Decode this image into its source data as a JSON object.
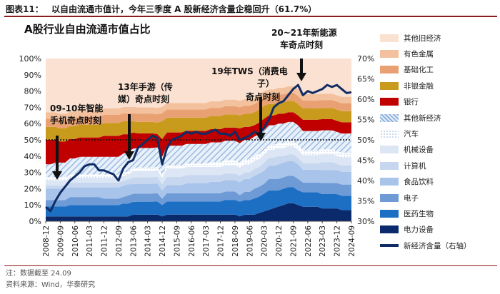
{
  "figure_label": "图表11：",
  "figure_title": "以自由流通市值计，今年三季度 A 股新经济含量企稳回升（61.7%）",
  "notes": [
    "注：数据截至 24.09",
    "资料来源：Wind，华泰研究"
  ],
  "chart_data": {
    "type": "area",
    "title": "A股行业自由流通市值占比",
    "xlabel": "",
    "ylabel_left": "",
    "ylabel_right": "新经济含量（右轴）",
    "ylim_left": [
      0,
      100
    ],
    "ylim_right": [
      30,
      70
    ],
    "left_ticks": [
      "0%",
      "10%",
      "20%",
      "30%",
      "40%",
      "50%",
      "60%",
      "70%",
      "80%",
      "90%",
      "100%"
    ],
    "right_ticks": [
      "30%",
      "35%",
      "40%",
      "45%",
      "50%",
      "55%",
      "60%",
      "65%",
      "70%"
    ],
    "x": [
      "2008-12",
      "2009-03",
      "2009-06",
      "2009-09",
      "2009-12",
      "2010-03",
      "2010-06",
      "2010-09",
      "2010-12",
      "2011-03",
      "2011-06",
      "2011-09",
      "2011-12",
      "2012-03",
      "2012-06",
      "2012-09",
      "2012-12",
      "2013-03",
      "2013-06",
      "2013-09",
      "2013-12",
      "2014-03",
      "2014-06",
      "2014-09",
      "2014-12",
      "2015-03",
      "2015-06",
      "2015-09",
      "2015-12",
      "2016-03",
      "2016-06",
      "2016-09",
      "2016-12",
      "2017-03",
      "2017-06",
      "2017-09",
      "2017-12",
      "2018-03",
      "2018-06",
      "2018-09",
      "2018-12",
      "2019-03",
      "2019-06",
      "2019-09",
      "2019-12",
      "2020-03",
      "2020-06",
      "2020-09",
      "2020-12",
      "2021-03",
      "2021-06",
      "2021-09",
      "2021-12",
      "2022-03",
      "2022-06",
      "2022-09",
      "2022-12",
      "2023-03",
      "2023-06",
      "2023-09",
      "2023-12",
      "2024-03",
      "2024-06",
      "2024-09"
    ],
    "x_tick_labels": [
      "2008-12",
      "2009-09",
      "2010-06",
      "2011-03",
      "2011-12",
      "2012-09",
      "2013-06",
      "2014-03",
      "2014-12",
      "2015-09",
      "2016-06",
      "2017-03",
      "2017-12",
      "2018-09",
      "2019-06",
      "2020-03",
      "2020-12",
      "2021-09",
      "2022-06",
      "2023-03",
      "2023-12",
      "2024-09"
    ],
    "dashed_reference_line": 50,
    "series": [
      {
        "name": "电力设备",
        "group": "新经济",
        "color": "#0a2a6b",
        "values": [
          3,
          3,
          3,
          3,
          3,
          3,
          3,
          3,
          3,
          3,
          3,
          3,
          3,
          3,
          3,
          3,
          3,
          3,
          4,
          4,
          4,
          4,
          4,
          4,
          3,
          4,
          4,
          4,
          4,
          4,
          4,
          4,
          4,
          4,
          4,
          4,
          4,
          4,
          4,
          4,
          3,
          4,
          4,
          4,
          5,
          6,
          7,
          8,
          9,
          10,
          11,
          11,
          10,
          9,
          9,
          9,
          9,
          8,
          8,
          8,
          8,
          7,
          7,
          7
        ]
      },
      {
        "name": "医药生物",
        "group": "新经济",
        "color": "#1d6fc4",
        "values": [
          6,
          6,
          6,
          6,
          6,
          7,
          7,
          7,
          7,
          7,
          7,
          7,
          7,
          7,
          7,
          7,
          8,
          8,
          8,
          8,
          8,
          8,
          8,
          8,
          7,
          8,
          8,
          8,
          8,
          8,
          8,
          8,
          8,
          8,
          8,
          8,
          8,
          9,
          9,
          9,
          9,
          9,
          9,
          10,
          10,
          11,
          12,
          11,
          10,
          10,
          10,
          10,
          9,
          9,
          9,
          9,
          9,
          9,
          9,
          9,
          9,
          9,
          9,
          9
        ]
      },
      {
        "name": "电子",
        "group": "新经济",
        "color": "#6e9bd6",
        "values": [
          4,
          4,
          4,
          4,
          4,
          5,
          5,
          5,
          5,
          5,
          5,
          5,
          4,
          4,
          4,
          4,
          4,
          5,
          5,
          5,
          5,
          5,
          5,
          5,
          4,
          5,
          5,
          5,
          5,
          5,
          5,
          5,
          5,
          5,
          5,
          5,
          5,
          5,
          5,
          5,
          4,
          5,
          5,
          6,
          6,
          6,
          7,
          7,
          7,
          7,
          7,
          7,
          7,
          6,
          6,
          6,
          6,
          7,
          7,
          7,
          7,
          7,
          7,
          7
        ]
      },
      {
        "name": "食品饮料",
        "group": "新经济",
        "color": "#a9c4ea",
        "values": [
          7,
          7,
          7,
          7,
          7,
          6,
          6,
          6,
          6,
          6,
          6,
          6,
          7,
          7,
          7,
          7,
          7,
          7,
          6,
          6,
          6,
          6,
          6,
          6,
          5,
          5,
          5,
          5,
          5,
          6,
          6,
          6,
          6,
          6,
          7,
          7,
          7,
          7,
          7,
          7,
          8,
          8,
          8,
          8,
          8,
          8,
          8,
          8,
          9,
          9,
          9,
          9,
          9,
          8,
          8,
          8,
          8,
          8,
          8,
          8,
          8,
          8,
          8,
          8
        ]
      },
      {
        "name": "计算机",
        "group": "新经济",
        "color": "#c6d7ef",
        "values": [
          2,
          2,
          2,
          2,
          2,
          3,
          3,
          3,
          3,
          3,
          3,
          3,
          3,
          3,
          3,
          3,
          3,
          3,
          4,
          4,
          4,
          4,
          4,
          4,
          4,
          5,
          5,
          5,
          5,
          5,
          5,
          5,
          5,
          5,
          4,
          4,
          4,
          4,
          4,
          4,
          4,
          4,
          4,
          4,
          4,
          5,
          5,
          5,
          5,
          4,
          4,
          4,
          4,
          4,
          4,
          4,
          4,
          5,
          5,
          5,
          4,
          4,
          4,
          4
        ]
      },
      {
        "name": "机械设备",
        "group": "新经济",
        "color": "#dce6f4",
        "values": [
          3,
          3,
          3,
          3,
          3,
          3,
          3,
          3,
          3,
          3,
          3,
          3,
          3,
          3,
          3,
          3,
          3,
          3,
          4,
          4,
          4,
          4,
          4,
          4,
          4,
          5,
          5,
          5,
          5,
          5,
          5,
          5,
          5,
          5,
          5,
          5,
          5,
          5,
          5,
          5,
          5,
          5,
          5,
          5,
          5,
          5,
          5,
          5,
          5,
          5,
          5,
          5,
          5,
          5,
          5,
          5,
          5,
          5,
          5,
          5,
          5,
          5,
          5,
          5
        ]
      },
      {
        "name": "汽车",
        "group": "新经济",
        "color": "#eaf1fb",
        "values": [
          2,
          2,
          2,
          2,
          2,
          2,
          2,
          2,
          2,
          2,
          2,
          2,
          2,
          2,
          2,
          2,
          2,
          2,
          2,
          2,
          2,
          2,
          2,
          2,
          2,
          2,
          2,
          2,
          2,
          2,
          2,
          2,
          2,
          2,
          3,
          3,
          3,
          3,
          3,
          3,
          3,
          3,
          3,
          3,
          3,
          3,
          3,
          3,
          3,
          3,
          3,
          3,
          3,
          3,
          3,
          3,
          3,
          3,
          3,
          3,
          3,
          3,
          3,
          3
        ]
      },
      {
        "name": "其他新经济",
        "group": "新经济",
        "color": "#9ab9e0",
        "values": [
          8,
          8,
          9,
          9,
          9,
          10,
          10,
          11,
          11,
          11,
          11,
          11,
          11,
          11,
          11,
          11,
          12,
          12,
          12,
          12,
          12,
          12,
          12,
          12,
          11,
          12,
          12,
          12,
          12,
          12,
          12,
          12,
          12,
          12,
          12,
          12,
          12,
          12,
          12,
          12,
          12,
          12,
          12,
          12,
          12,
          12,
          12,
          12,
          12,
          12,
          12,
          12,
          12,
          12,
          12,
          12,
          12,
          12,
          12,
          12,
          12,
          12,
          12,
          12
        ]
      },
      {
        "name": "银行",
        "group": "旧经济",
        "color": "#c00000",
        "values": [
          15,
          15,
          14,
          13,
          13,
          12,
          12,
          12,
          12,
          12,
          12,
          12,
          13,
          13,
          13,
          13,
          12,
          11,
          10,
          9,
          9,
          9,
          9,
          8,
          11,
          8,
          8,
          8,
          8,
          8,
          8,
          8,
          8,
          8,
          8,
          8,
          8,
          8,
          8,
          8,
          9,
          8,
          8,
          7,
          7,
          7,
          6,
          6,
          6,
          6,
          6,
          6,
          6,
          7,
          7,
          7,
          7,
          7,
          7,
          7,
          7,
          7,
          7,
          7
        ]
      },
      {
        "name": "非银金融",
        "group": "旧经济",
        "color": "#c89b1c",
        "values": [
          8,
          8,
          8,
          8,
          8,
          8,
          8,
          8,
          8,
          8,
          8,
          8,
          8,
          8,
          8,
          8,
          8,
          8,
          7,
          7,
          7,
          7,
          7,
          7,
          11,
          9,
          9,
          9,
          9,
          8,
          8,
          8,
          8,
          8,
          8,
          8,
          8,
          8,
          8,
          8,
          8,
          8,
          8,
          8,
          8,
          8,
          7,
          7,
          7,
          7,
          7,
          7,
          7,
          7,
          7,
          7,
          7,
          7,
          7,
          7,
          7,
          7,
          7,
          7
        ]
      },
      {
        "name": "基础化工",
        "group": "旧经济",
        "color": "#e9a173",
        "values": [
          5,
          5,
          5,
          5,
          5,
          5,
          5,
          5,
          5,
          5,
          5,
          5,
          5,
          5,
          5,
          5,
          5,
          5,
          5,
          5,
          5,
          5,
          5,
          5,
          5,
          5,
          5,
          5,
          5,
          5,
          5,
          5,
          5,
          5,
          5,
          5,
          5,
          5,
          5,
          5,
          5,
          5,
          5,
          5,
          5,
          5,
          5,
          5,
          5,
          5,
          5,
          5,
          5,
          5,
          5,
          5,
          5,
          5,
          5,
          5,
          5,
          5,
          5,
          5
        ]
      },
      {
        "name": "有色金属",
        "group": "旧经济",
        "color": "#f3c19d",
        "values": [
          4,
          4,
          4,
          4,
          4,
          4,
          4,
          4,
          4,
          4,
          4,
          4,
          4,
          4,
          4,
          4,
          4,
          4,
          4,
          4,
          4,
          4,
          4,
          4,
          4,
          4,
          4,
          4,
          4,
          4,
          4,
          4,
          4,
          4,
          4,
          4,
          4,
          4,
          4,
          4,
          4,
          4,
          4,
          4,
          4,
          4,
          4,
          4,
          4,
          4,
          4,
          4,
          4,
          4,
          4,
          4,
          4,
          4,
          4,
          4,
          4,
          4,
          4,
          4
        ]
      },
      {
        "name": "其他旧经济",
        "group": "旧经济",
        "color": "#fbe1d1",
        "values": [
          33,
          33,
          33,
          34,
          34,
          33,
          33,
          32,
          32,
          32,
          32,
          32,
          31,
          31,
          31,
          31,
          30,
          30,
          30,
          30,
          30,
          30,
          30,
          30,
          30,
          27,
          27,
          27,
          27,
          27,
          27,
          27,
          27,
          27,
          26,
          26,
          26,
          25,
          25,
          25,
          26,
          25,
          25,
          24,
          22,
          20,
          19,
          19,
          18,
          18,
          17,
          17,
          19,
          22,
          22,
          22,
          22,
          22,
          22,
          22,
          23,
          24,
          24,
          24
        ]
      },
      {
        "name": "新经济含量（右轴）",
        "axis": "right",
        "type": "line",
        "color": "#0f2c63",
        "values": [
          33.5,
          32.5,
          35,
          37,
          38.5,
          40,
          41,
          42,
          43.5,
          44,
          44,
          42.5,
          42.5,
          42,
          41.5,
          40,
          43,
          44.5,
          45,
          48,
          49,
          50,
          51,
          50.5,
          44,
          48,
          50,
          50.5,
          51,
          52,
          51.5,
          52,
          51.5,
          51.5,
          52,
          52.5,
          51.5,
          51.5,
          51,
          52,
          50,
          50.5,
          51,
          52,
          51.5,
          53,
          55,
          58,
          59,
          59.5,
          61,
          62.5,
          63.5,
          61,
          62,
          61.5,
          62,
          62.5,
          63.5,
          63,
          63.5,
          62.5,
          61.5,
          61.7
        ]
      }
    ],
    "annotations": [
      {
        "text_lines": [
          "09-10年智能",
          "手机奇点时刻"
        ],
        "x": "2009-06"
      },
      {
        "text_lines": [
          "13年手游（传",
          "媒）奇点时刻"
        ],
        "x": "2013-06"
      },
      {
        "text_lines": [
          "19年TWS（消费电",
          "子）",
          "奇点时刻"
        ],
        "x": "2019-12"
      },
      {
        "text_lines": [
          "20~21年新能源",
          "车奇点时刻"
        ],
        "x": "2021-12"
      }
    ]
  }
}
